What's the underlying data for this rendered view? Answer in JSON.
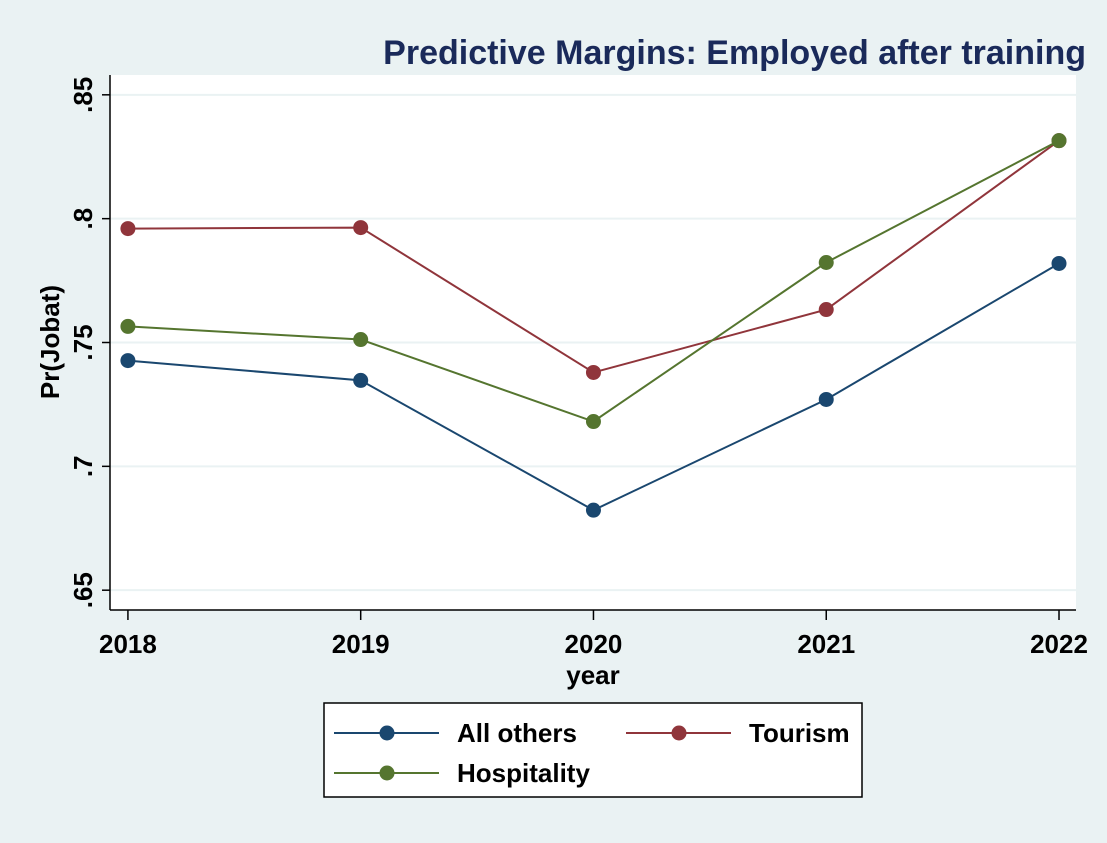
{
  "chart_data": {
    "type": "line",
    "title": "Predictive Margins: Employed after training",
    "x_label": "year",
    "y_label": "Pr(Jobat)",
    "x": [
      2018,
      2019,
      2020,
      2021,
      2022
    ],
    "xlim": [
      2017.923,
      2022.073
    ],
    "xticks": [
      2018,
      2019,
      2020,
      2021,
      2022
    ],
    "ylim": [
      0.642,
      0.858
    ],
    "yticks": [
      {
        "value": 0.65,
        "label": ".65"
      },
      {
        "value": 0.7,
        "label": ".7"
      },
      {
        "value": 0.75,
        "label": ".75"
      },
      {
        "value": 0.8,
        "label": ".8"
      },
      {
        "value": 0.85,
        "label": ".85"
      }
    ],
    "grid": true,
    "legend_position": "bottom",
    "series": [
      {
        "name": "All others",
        "color": "#1a476f",
        "values": [
          0.7427,
          0.7347,
          0.6823,
          0.727,
          0.7819
        ]
      },
      {
        "name": "Tourism",
        "color": "#90353b",
        "values": [
          0.796,
          0.7964,
          0.7379,
          0.7633,
          0.8315
        ]
      },
      {
        "name": "Hospitality",
        "color": "#55752f",
        "values": [
          0.7565,
          0.7512,
          0.7181,
          0.7823,
          0.8315
        ]
      }
    ]
  }
}
